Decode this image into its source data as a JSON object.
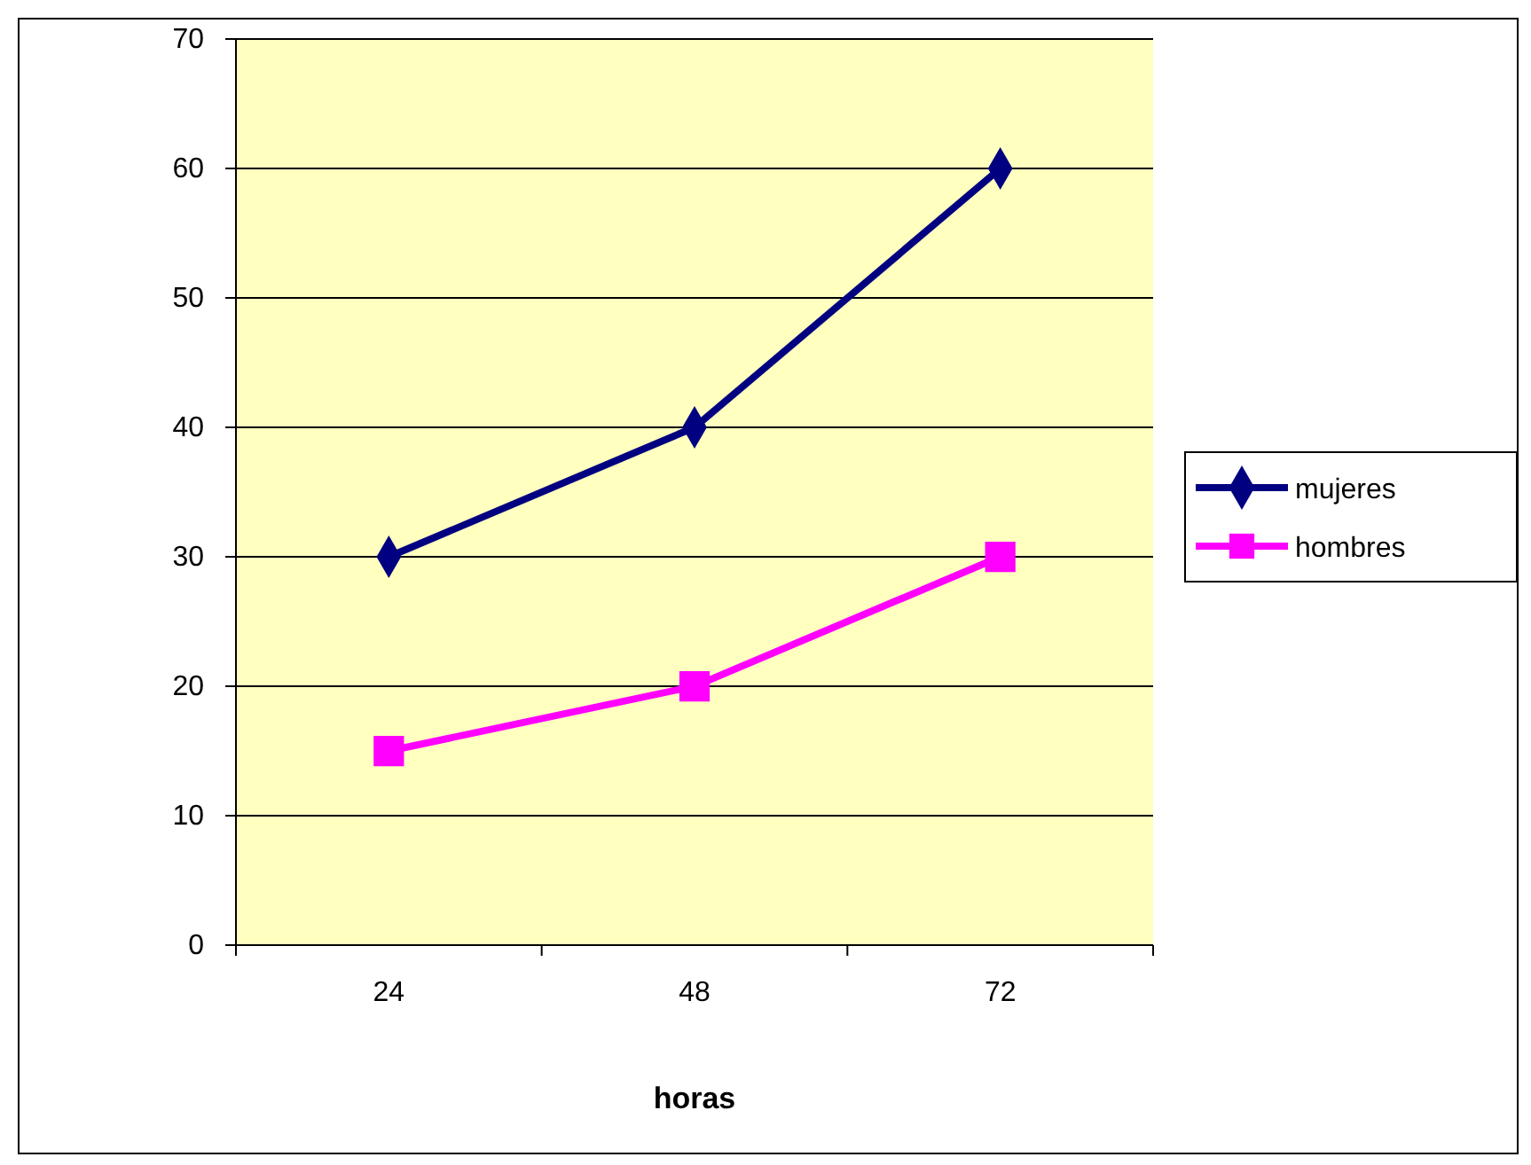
{
  "chart_data": {
    "type": "line",
    "xlabel": "horas",
    "categories": [
      "24",
      "48",
      "72"
    ],
    "series": [
      {
        "name": "mujeres",
        "color": "#000080",
        "values": [
          30,
          40,
          60
        ],
        "marker": "diamond"
      },
      {
        "name": "hombres",
        "color": "#ff00ff",
        "values": [
          15,
          20,
          30
        ],
        "marker": "square"
      }
    ],
    "ylim": [
      0,
      70
    ],
    "yticks": [
      0,
      10,
      20,
      30,
      40,
      50,
      60,
      70
    ],
    "grid": "y",
    "legend": "right"
  }
}
